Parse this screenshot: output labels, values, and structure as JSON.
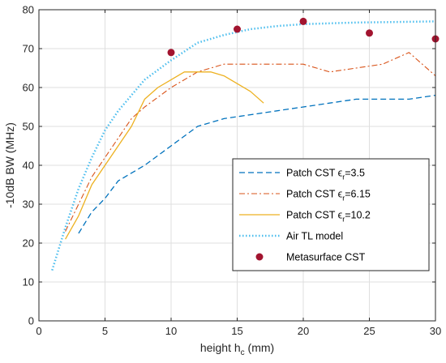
{
  "chart_data": {
    "type": "line",
    "xlabel": "height h",
    "xlabel_sub": "c",
    "xlabel_unit": " (mm)",
    "ylabel": "-10dB BW (MHz)",
    "xlim": [
      0,
      30
    ],
    "ylim": [
      0,
      80
    ],
    "xticks": [
      0,
      5,
      10,
      15,
      20,
      25,
      30
    ],
    "yticks": [
      0,
      10,
      20,
      30,
      40,
      50,
      60,
      70,
      80
    ],
    "grid": true,
    "legend_position": "lower-right",
    "series": [
      {
        "name": "Patch CST ε_r=3.5",
        "legend_main": "Patch CST ϵ",
        "legend_sub": "r",
        "legend_tail": "=3.5",
        "color": "#0072BD",
        "dash": "dashed",
        "x": [
          3,
          4,
          5,
          6,
          7,
          8,
          9,
          10,
          11,
          12,
          14,
          16,
          18,
          20,
          22,
          24,
          26,
          28,
          30
        ],
        "y": [
          22.5,
          28,
          31.5,
          36,
          38,
          40,
          42.5,
          45,
          47.5,
          50,
          52,
          53,
          54,
          55,
          56,
          57,
          57,
          57,
          58
        ]
      },
      {
        "name": "Patch CST ε_r=6.15",
        "legend_main": "Patch CST ϵ",
        "legend_sub": "r",
        "legend_tail": "=6.15",
        "color": "#D95319",
        "dash": "dashdot",
        "x": [
          2,
          3,
          4,
          5,
          6,
          7,
          8,
          10,
          12,
          14,
          16,
          18,
          20,
          22,
          24,
          26,
          28,
          30
        ],
        "y": [
          23,
          30,
          37,
          42,
          47,
          52,
          55,
          60,
          64,
          66,
          66,
          66,
          66,
          64,
          65,
          66,
          69,
          63
        ]
      },
      {
        "name": "Patch CST ε_r=10.2",
        "legend_main": "Patch CST ϵ",
        "legend_sub": "r",
        "legend_tail": "=10.2",
        "color": "#EDB120",
        "dash": "solid",
        "x": [
          2,
          3,
          4,
          5,
          6,
          7,
          8,
          9,
          10,
          11,
          12,
          13,
          14,
          15,
          16,
          17
        ],
        "y": [
          21,
          27,
          35,
          40,
          45,
          50,
          57,
          60,
          62,
          64,
          64,
          64,
          63,
          61,
          59,
          56
        ]
      },
      {
        "name": "Air TL model",
        "color": "#4DBEEE",
        "dash": "dotted",
        "x": [
          1,
          2,
          3,
          4,
          5,
          6,
          7,
          8,
          10,
          12,
          14,
          16,
          18,
          20,
          22,
          24,
          26,
          28,
          30
        ],
        "y": [
          13,
          24,
          34,
          42,
          49,
          54,
          58,
          62,
          67,
          71.5,
          73.5,
          75,
          75.8,
          76.3,
          76.5,
          76.7,
          76.8,
          76.9,
          77
        ]
      },
      {
        "name": "Metasurface CST",
        "color": "#A2142F",
        "marker": "circle",
        "x": [
          10,
          15,
          20,
          25,
          30
        ],
        "y": [
          69,
          75,
          77,
          74,
          72.5
        ]
      }
    ]
  }
}
